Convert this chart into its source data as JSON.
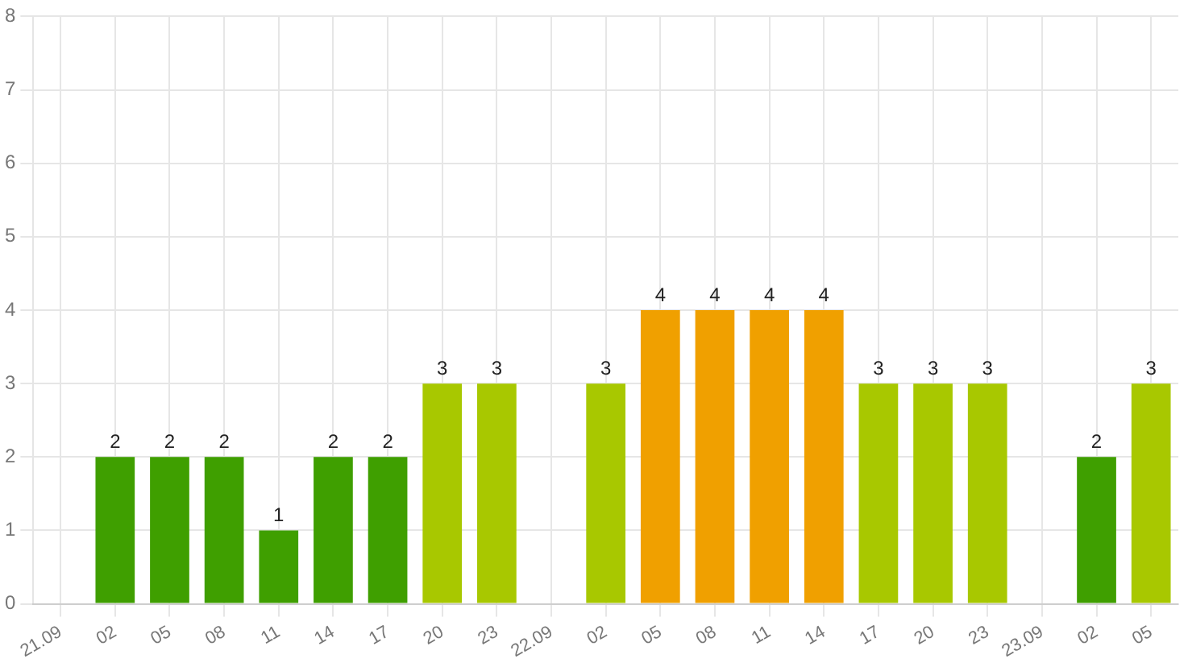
{
  "chart_data": {
    "type": "bar",
    "categories": [
      "21.09",
      "02",
      "05",
      "08",
      "11",
      "14",
      "17",
      "20",
      "23",
      "22.09",
      "02",
      "05",
      "08",
      "11",
      "14",
      "17",
      "20",
      "23",
      "23.09",
      "02",
      "05"
    ],
    "values": [
      null,
      2,
      2,
      2,
      1,
      2,
      2,
      3,
      3,
      null,
      3,
      4,
      4,
      4,
      4,
      3,
      3,
      3,
      null,
      2,
      3
    ],
    "colors": [
      "#3f9f00",
      "#3f9f00",
      "#3f9f00",
      "#3f9f00",
      "#3f9f00",
      "#3f9f00",
      "#3f9f00",
      "#a8c800",
      "#a8c800",
      "#3f9f00",
      "#a8c800",
      "#f0a000",
      "#f0a000",
      "#f0a000",
      "#f0a000",
      "#a8c800",
      "#a8c800",
      "#a8c800",
      "#3f9f00",
      "#3f9f00",
      "#a8c800"
    ],
    "ylim": [
      0,
      8
    ],
    "yticks": [
      0,
      1,
      2,
      3,
      4,
      5,
      6,
      7,
      8
    ],
    "grid": true,
    "legend": false,
    "data_labels": true
  }
}
